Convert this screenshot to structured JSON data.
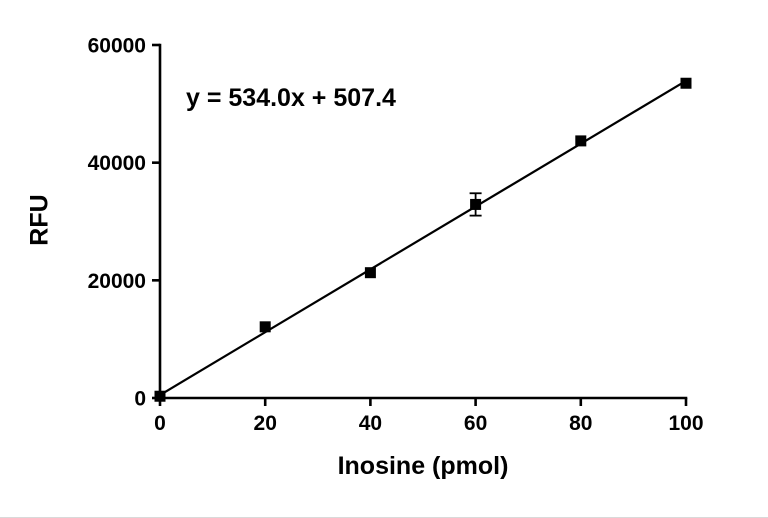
{
  "chart_data": {
    "type": "scatter",
    "title": "",
    "equation": "y = 534.0x + 507.4",
    "xlabel": "Inosine (pmol)",
    "ylabel": "RFU",
    "x": [
      0,
      20,
      40,
      60,
      80,
      100
    ],
    "y": [
      300,
      12100,
      21300,
      32900,
      43700,
      53500
    ],
    "yerr": [
      0,
      0,
      0,
      1900,
      0,
      0
    ],
    "fit": {
      "slope": 534.0,
      "intercept": 507.4
    },
    "xlim": [
      0,
      100
    ],
    "ylim": [
      0,
      60000
    ],
    "xticks": [
      0,
      20,
      40,
      60,
      80,
      100
    ],
    "yticks": [
      0,
      20000,
      40000,
      60000
    ],
    "ytick_labels": [
      "0",
      "20000",
      "40000",
      "60000"
    ],
    "xtick_labels": [
      "0",
      "20",
      "40",
      "60",
      "80",
      "100"
    ],
    "grid": false,
    "legend": "none",
    "marker": "square",
    "colors": {
      "line": "#000000",
      "marker": "#000000",
      "axis": "#000000",
      "background": "#ffffff"
    }
  }
}
